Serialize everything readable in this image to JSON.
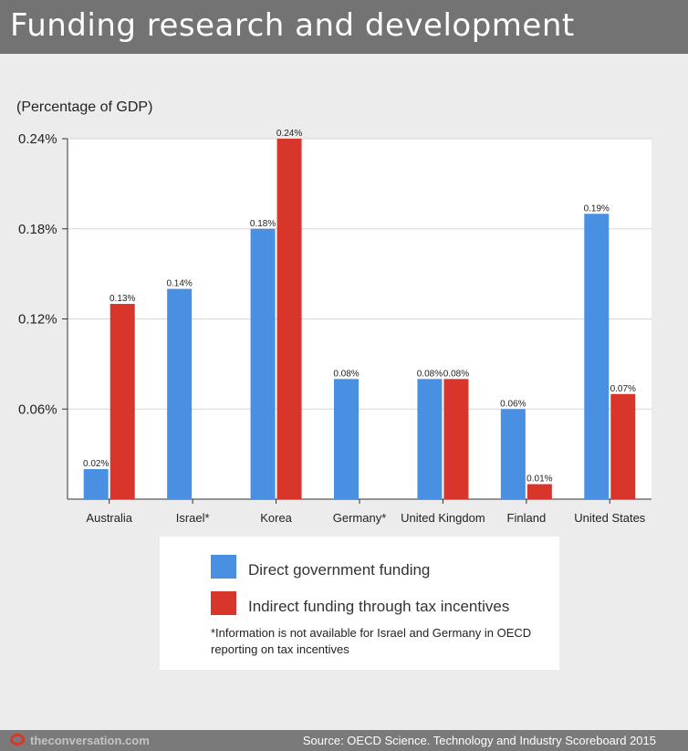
{
  "header": {
    "title": "Funding research and development"
  },
  "chart_data": {
    "type": "bar",
    "ylabel": "(Percentage of GDP)",
    "categories": [
      "Australia",
      "Israel*",
      "Korea",
      "Germany*",
      "United Kingdom",
      "Finland",
      "United States"
    ],
    "series": [
      {
        "name": "Direct government funding",
        "color": "#4a90e2",
        "values": [
          0.02,
          0.14,
          0.18,
          0.08,
          0.08,
          0.06,
          0.19
        ],
        "labels": [
          "0.02%",
          "0.14%",
          "0.18%",
          "0.08%",
          "0.08%",
          "0.06%",
          "0.19%"
        ]
      },
      {
        "name": "Indirect funding through tax incentives",
        "color": "#d9362b",
        "values": [
          0.13,
          null,
          0.24,
          null,
          0.08,
          0.01,
          0.07
        ],
        "labels": [
          "0.13%",
          "",
          "0.24%",
          "",
          "0.08%",
          "0.01%",
          "0.07%"
        ]
      }
    ],
    "yticks": [
      0.06,
      0.12,
      0.18,
      0.24
    ],
    "ytick_labels": [
      "0.06%",
      "0.12%",
      "0.18%",
      "0.24%"
    ],
    "ylim": [
      0,
      0.24
    ],
    "grid": true,
    "legend_position": "bottom"
  },
  "legend": {
    "note": "*Information is not available for Israel and Germany in OECD reporting on tax incentives"
  },
  "footer": {
    "logo_text": "theconversation.com",
    "source": "Source: OECD Science. Technology and Industry Scoreboard 2015"
  }
}
